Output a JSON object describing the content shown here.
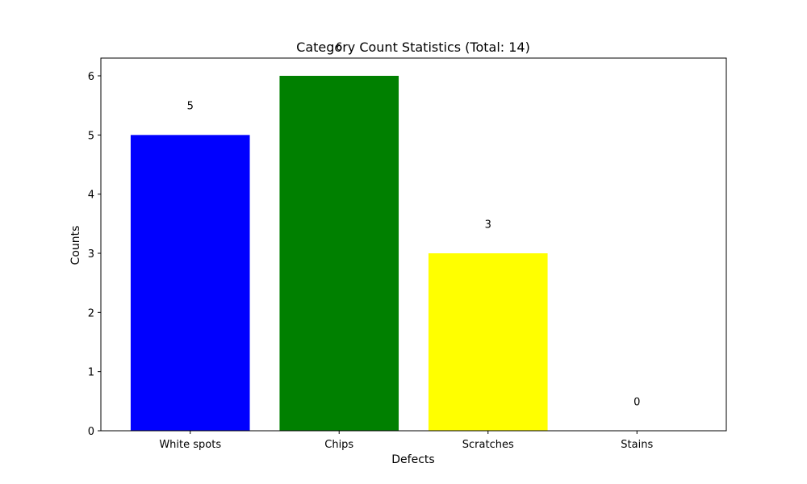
{
  "chart_data": {
    "type": "bar",
    "title": "Category Count Statistics (Total: 14)",
    "xlabel": "Defects",
    "ylabel": "Counts",
    "categories": [
      "White spots",
      "Chips",
      "Scratches",
      "Stains"
    ],
    "values": [
      5,
      6,
      3,
      0
    ],
    "data_labels": [
      "5",
      "6",
      "3",
      "0"
    ],
    "colors": [
      "#0000ff",
      "#008000",
      "#ffff00",
      "#ff0000"
    ],
    "ylim": [
      0,
      6.3
    ],
    "yticks": [
      0,
      1,
      2,
      3,
      4,
      5,
      6
    ],
    "ytick_labels": [
      "0",
      "1",
      "2",
      "3",
      "4",
      "5",
      "6"
    ],
    "grid": false,
    "legend": "none"
  }
}
